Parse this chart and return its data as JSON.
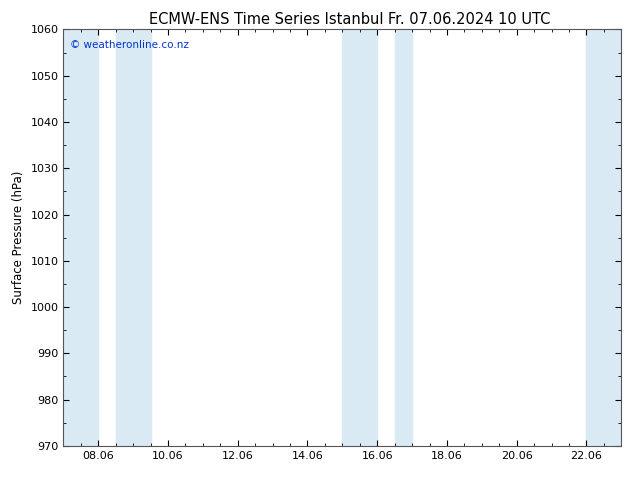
{
  "title_left": "ECMW-ENS Time Series Istanbul",
  "title_right": "Fr. 07.06.2024 10 UTC",
  "ylabel": "Surface Pressure (hPa)",
  "ylim": [
    970,
    1060
  ],
  "yticks": [
    970,
    980,
    990,
    1000,
    1010,
    1020,
    1030,
    1040,
    1050,
    1060
  ],
  "xtick_labels": [
    "08.06",
    "10.06",
    "12.06",
    "14.06",
    "16.06",
    "18.06",
    "20.06",
    "22.06"
  ],
  "xtick_positions": [
    2,
    6,
    10,
    14,
    18,
    22,
    26,
    30
  ],
  "xlim": [
    0,
    32
  ],
  "x_minor_step": 1,
  "shaded_bands": [
    {
      "xmin": 0,
      "xmax": 2,
      "color": "#daeaf5"
    },
    {
      "xmin": 3,
      "xmax": 5,
      "color": "#daeaf5"
    },
    {
      "xmin": 16,
      "xmax": 18,
      "color": "#daeaf5"
    },
    {
      "xmin": 19,
      "xmax": 20,
      "color": "#daeaf5"
    },
    {
      "xmin": 30,
      "xmax": 32,
      "color": "#daeaf5"
    }
  ],
  "watermark_text": "© weatheronline.co.nz",
  "watermark_color": "#0033cc",
  "background_color": "#ffffff",
  "plot_bg_color": "#ffffff",
  "grid_color": "#cccccc",
  "title_fontsize": 10.5,
  "tick_fontsize": 8,
  "ylabel_fontsize": 8.5
}
